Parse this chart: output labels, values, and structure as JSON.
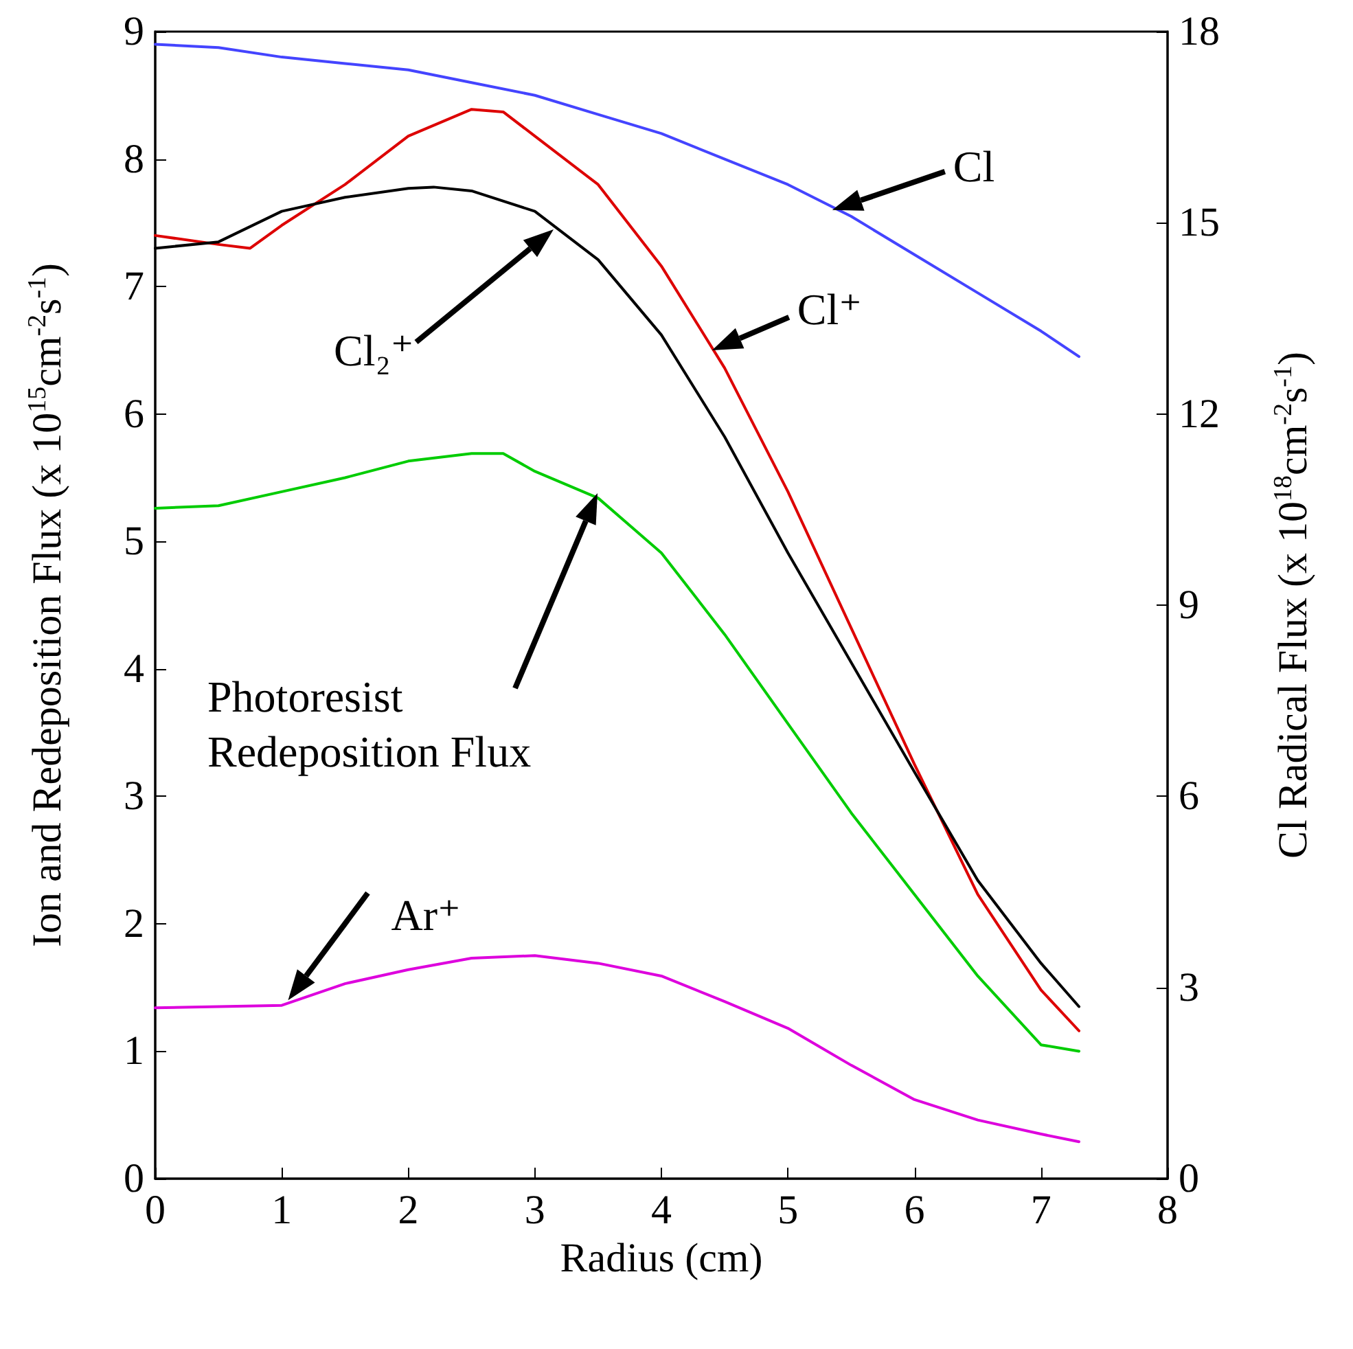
{
  "chart_data": {
    "type": "line",
    "xlabel": "Radius (cm)",
    "ylabel": "Ion and Redeposition Flux (x 10$^{15}$cm$^{-2}$s$^{-1}$)",
    "y2label": "Cl Radical Flux (x 10$^{18}$cm$^{-2}$s$^{-1}$)",
    "xlim": [
      0,
      8
    ],
    "xticks": [
      0,
      1,
      2,
      3,
      4,
      5,
      6,
      7,
      8
    ],
    "ylim": [
      0,
      9
    ],
    "yticks": [
      0,
      1,
      2,
      3,
      4,
      5,
      6,
      7,
      8,
      9
    ],
    "y2lim": [
      0,
      18
    ],
    "y2ticks": [
      0,
      3,
      6,
      9,
      12,
      15,
      18
    ],
    "grid": false,
    "marker": "none",
    "line_style": "solid",
    "series": [
      {
        "color": "#4444ff",
        "axis": "y2",
        "x": [
          0,
          0.5,
          1,
          1.5,
          2,
          2.5,
          3,
          3.5,
          4,
          4.5,
          5,
          5.5,
          6,
          6.5,
          7,
          7.3
        ],
        "values": [
          17.8,
          17.75,
          17.6,
          17.5,
          17.4,
          17.2,
          17.0,
          16.7,
          16.4,
          16.0,
          15.6,
          15.1,
          14.5,
          13.9,
          13.3,
          12.9
        ]
      },
      {
        "color": "#dd0000",
        "x": [
          0,
          0.5,
          0.75,
          1,
          1.5,
          2,
          2.5,
          2.75,
          3,
          3.5,
          4,
          4.5,
          5,
          5.5,
          6,
          6.5,
          7,
          7.3
        ],
        "values": [
          7.4,
          7.33,
          7.3,
          7.48,
          7.8,
          8.18,
          8.39,
          8.37,
          8.18,
          7.8,
          7.16,
          6.36,
          5.39,
          4.32,
          3.25,
          2.23,
          1.48,
          1.16
        ]
      },
      {
        "color": "#000000",
        "x": [
          0,
          0.5,
          1,
          1.5,
          2,
          2.2,
          2.5,
          3,
          3.5,
          4,
          4.5,
          5,
          5.5,
          6,
          6.5,
          7,
          7.3
        ],
        "values": [
          7.3,
          7.35,
          7.59,
          7.7,
          7.77,
          7.78,
          7.75,
          7.59,
          7.21,
          6.62,
          5.82,
          4.91,
          4.05,
          3.19,
          2.34,
          1.69,
          1.35
        ]
      },
      {
        "color": "#00cc00",
        "x": [
          0,
          0.5,
          1,
          1.5,
          2,
          2.5,
          2.75,
          3,
          3.5,
          4,
          4.5,
          5,
          5.5,
          6,
          6.5,
          7,
          7.3
        ],
        "values": [
          5.26,
          5.28,
          5.39,
          5.5,
          5.63,
          5.69,
          5.69,
          5.55,
          5.34,
          4.91,
          4.27,
          3.57,
          2.87,
          2.23,
          1.59,
          1.05,
          1.0
        ]
      },
      {
        "color": "#dd00dd",
        "x": [
          0,
          1,
          1.5,
          2,
          2.5,
          3,
          3.5,
          4,
          4.5,
          5,
          5.5,
          6,
          6.5,
          7,
          7.3
        ],
        "values": [
          1.34,
          1.36,
          1.53,
          1.64,
          1.73,
          1.75,
          1.69,
          1.59,
          1.39,
          1.18,
          0.89,
          0.62,
          0.46,
          0.35,
          0.29
        ]
      }
    ],
    "annotations": [
      {
        "text": "Cl",
        "x": 5.35,
        "y": 7.6
      },
      {
        "text": "Cl⁺",
        "x": 4.4,
        "y": 6.5
      },
      "Cl₂⁺",
      "Photoresist\nRedeposition Flux",
      {
        "text": "Ar⁺",
        "x": 1.05,
        "y": 1.4
      }
    ]
  }
}
